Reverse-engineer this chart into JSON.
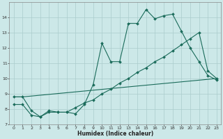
{
  "xlabel": "Humidex (Indice chaleur)",
  "bg_color": "#cce8e8",
  "grid_color": "#aacccc",
  "line_color": "#1a6b5a",
  "xlim": [
    -0.5,
    23.5
  ],
  "ylim": [
    7.0,
    15.0
  ],
  "yticks": [
    7,
    8,
    9,
    10,
    11,
    12,
    13,
    14
  ],
  "xticks": [
    0,
    1,
    2,
    3,
    4,
    5,
    6,
    7,
    8,
    9,
    10,
    11,
    12,
    13,
    14,
    15,
    16,
    17,
    18,
    19,
    20,
    21,
    22,
    23
  ],
  "line1_x": [
    0,
    1,
    2,
    3,
    4,
    5,
    6,
    7,
    8,
    9,
    10,
    11,
    12,
    13,
    14,
    15,
    16,
    17,
    18,
    19,
    20,
    21,
    22,
    23
  ],
  "line1_y": [
    8.8,
    8.8,
    7.9,
    7.5,
    7.9,
    7.8,
    7.8,
    7.7,
    8.3,
    9.6,
    12.3,
    11.1,
    11.1,
    13.6,
    13.6,
    14.5,
    13.9,
    14.1,
    14.2,
    13.1,
    12.0,
    11.1,
    10.2,
    9.9
  ],
  "line2_x": [
    0,
    1,
    2,
    3,
    4,
    5,
    6,
    7,
    8,
    9,
    10,
    11,
    12,
    13,
    14,
    15,
    16,
    17,
    18,
    19,
    20,
    21,
    22,
    23
  ],
  "line2_y": [
    8.3,
    8.3,
    7.6,
    7.5,
    7.8,
    7.8,
    7.8,
    8.1,
    8.4,
    8.6,
    9.0,
    9.3,
    9.7,
    10.0,
    10.4,
    10.7,
    11.1,
    11.4,
    11.8,
    12.2,
    12.6,
    13.0,
    10.5,
    10.0
  ],
  "line3_x": [
    0,
    1,
    23
  ],
  "line3_y": [
    8.8,
    8.8,
    10.0
  ]
}
